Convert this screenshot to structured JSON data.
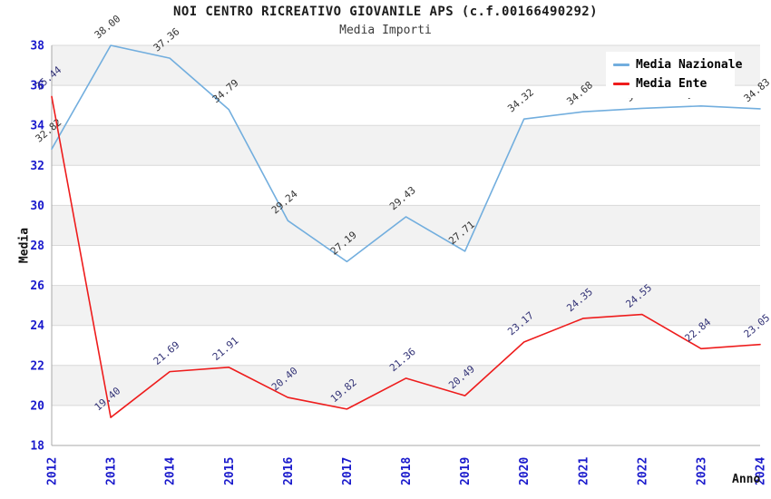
{
  "chart_data": {
    "type": "line",
    "title": "NOI CENTRO RICREATIVO GIOVANILE APS (c.f.00166490292)",
    "subtitle": "Media Importi",
    "xlabel": "Anno",
    "ylabel": "Media",
    "x": [
      "2012",
      "2013",
      "2014",
      "2015",
      "2016",
      "2017",
      "2018",
      "2019",
      "2020",
      "2021",
      "2022",
      "2023",
      "2024"
    ],
    "ylim": [
      18,
      38
    ],
    "ytick_step": 2,
    "yticks": [
      18,
      20,
      22,
      24,
      26,
      28,
      30,
      32,
      34,
      36,
      38
    ],
    "grid": "horizontal gridlines with alternating gray/white bands every 2 units",
    "legend_position": "top-right",
    "series": [
      {
        "name": "Media Nazionale",
        "color": "#72aede",
        "label_color": "#333333",
        "values": [
          32.82,
          38.0,
          37.36,
          34.79,
          29.24,
          27.19,
          29.43,
          27.71,
          34.32,
          34.68,
          34.85,
          34.97,
          34.83
        ]
      },
      {
        "name": "Media Ente",
        "color": "#ee1c1c",
        "label_color": "#333377",
        "values": [
          35.44,
          19.4,
          21.69,
          21.91,
          20.4,
          19.82,
          21.36,
          20.49,
          23.17,
          24.35,
          24.55,
          22.84,
          23.05
        ]
      }
    ],
    "colors": {
      "band": "#f2f2f2",
      "grid": "#d9d9d9",
      "axis": "#a8a8a8",
      "tick_label": "#1a1acc"
    }
  }
}
